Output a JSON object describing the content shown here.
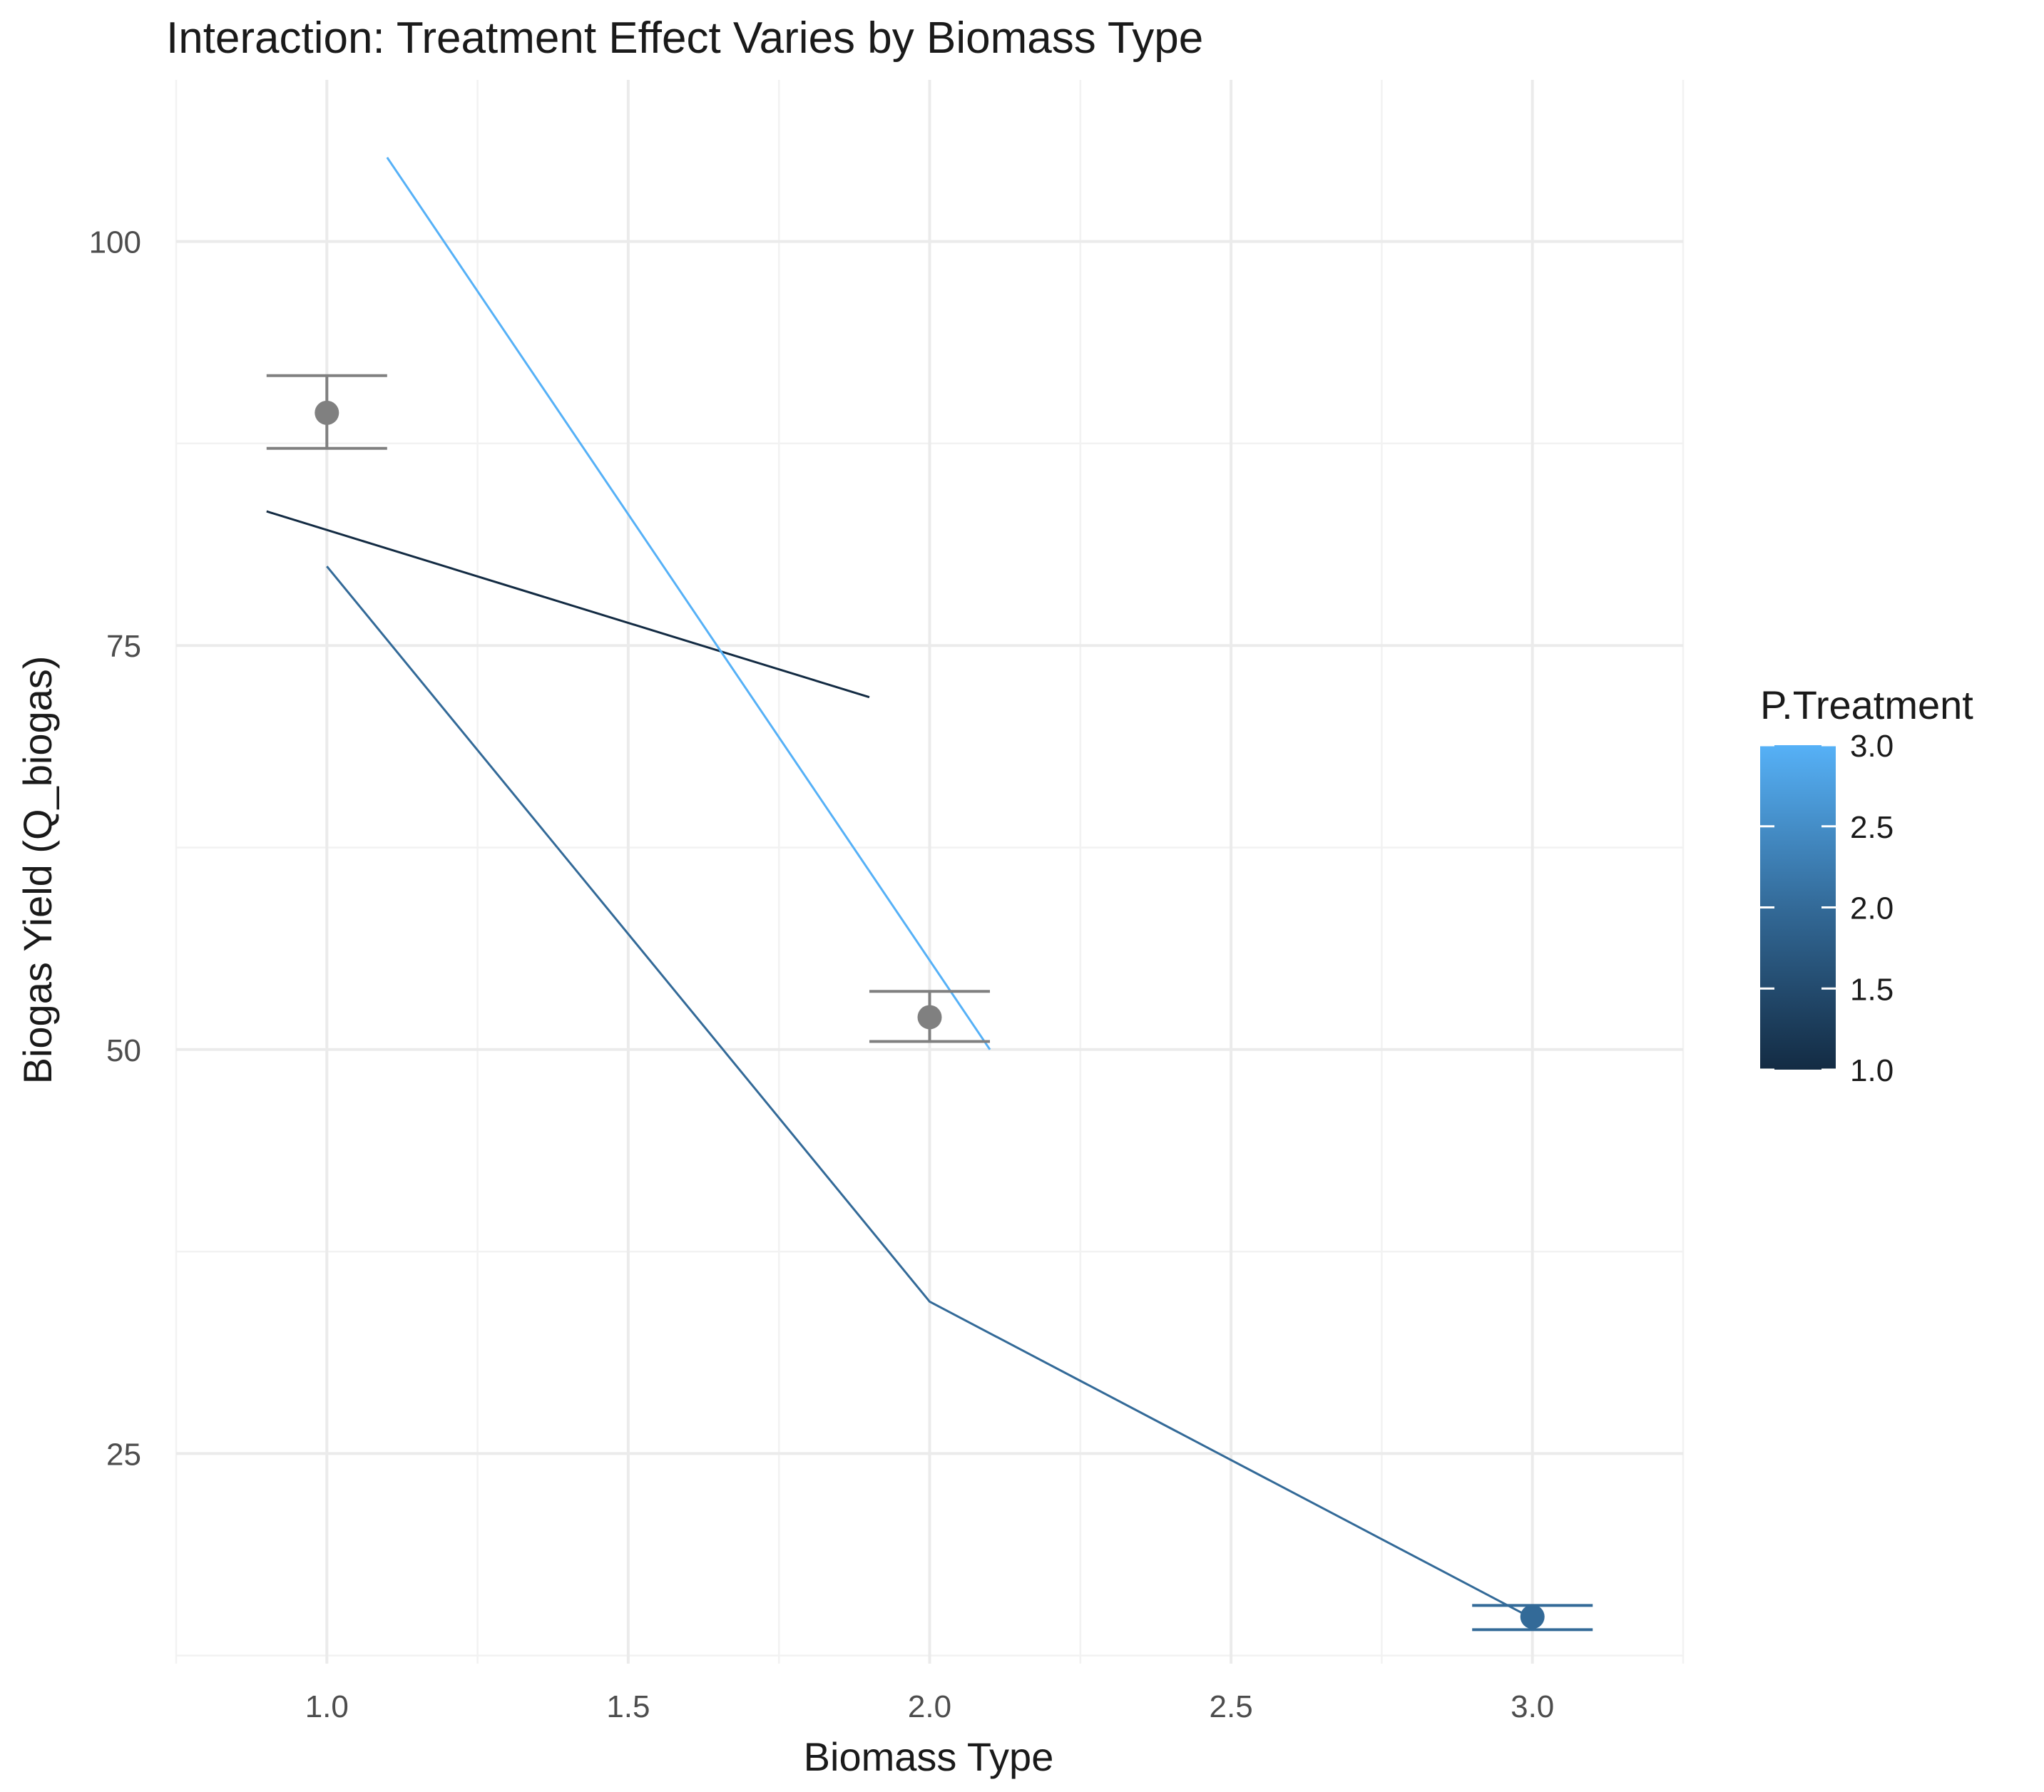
{
  "chart_data": {
    "type": "line",
    "title": "Interaction: Treatment Effect Varies by Biomass Type",
    "xlabel": "Biomass Type",
    "ylabel": "Biogas Yield (Q_biogas)",
    "xlim": [
      0.75,
      3.25
    ],
    "ylim": [
      12,
      110
    ],
    "x_ticks": [
      "1.0",
      "1.5",
      "2.0",
      "2.5",
      "3.0"
    ],
    "x_tick_values": [
      1.0,
      1.5,
      2.0,
      2.5,
      3.0
    ],
    "y_ticks": [
      "25",
      "50",
      "75",
      "100"
    ],
    "y_tick_values": [
      25,
      50,
      75,
      100
    ],
    "grid": true,
    "legend": {
      "title": "P.Treatment",
      "type": "colorbar",
      "position": "right",
      "min": 1.0,
      "max": 3.0,
      "labels": [
        "1.0",
        "1.5",
        "2.0",
        "2.5",
        "3.0"
      ],
      "label_values": [
        1.0,
        1.5,
        2.0,
        2.5,
        3.0
      ],
      "color_low": "#132b43",
      "color_high": "#56b1f7"
    },
    "series": [
      {
        "treatment": 1.0,
        "color": "#132b43",
        "x": [
          0.9,
          1.9
        ],
        "y": [
          83.3,
          71.8
        ]
      },
      {
        "treatment": 2.0,
        "color": "#336a98",
        "x": [
          1.0,
          2.0,
          3.0
        ],
        "y": [
          79.9,
          34.4,
          14.8
        ]
      },
      {
        "treatment": 3.0,
        "color": "#56b1f7",
        "x": [
          1.1,
          2.1
        ],
        "y": [
          105.2,
          50.0
        ]
      }
    ],
    "points": [
      {
        "x": 1.0,
        "y": 89.4,
        "ymin": 87.2,
        "ymax": 91.7,
        "color": "#808080"
      },
      {
        "x": 2.0,
        "y": 52.0,
        "ymin": 50.5,
        "ymax": 53.6,
        "color": "#808080"
      },
      {
        "x": 3.0,
        "y": 14.9,
        "ymin": 14.1,
        "ymax": 15.6,
        "color": "#336a98"
      }
    ]
  }
}
